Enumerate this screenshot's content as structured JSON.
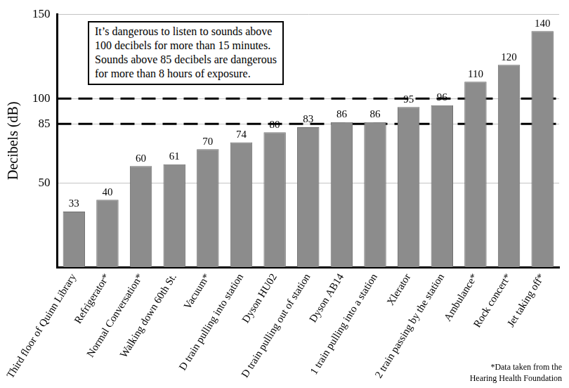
{
  "chart_data": {
    "type": "bar",
    "ylabel": "Decibels (dB)",
    "categories": [
      "Third floor of Quinn Library",
      "Refrigerator*",
      "Normal Conversation*",
      "Walking down 60th St.",
      "Vacuum*",
      "D train pulling into station",
      "Dyson HU02",
      "D train pulling out of station",
      "Dyson AB14",
      "1 train pulling into a station",
      "Xlerator",
      "2 train passing by the station",
      "Ambulance*",
      "Rock concert*",
      "Jet taking off*"
    ],
    "values": [
      33,
      40,
      60,
      61,
      70,
      74,
      80,
      83,
      86,
      86,
      95,
      96,
      110,
      120,
      140
    ],
    "color": "#8c8c8c",
    "ylim": [
      0,
      150
    ],
    "yticks": [
      50,
      85,
      100,
      150
    ],
    "reference_lines": [
      85,
      100
    ],
    "grid": true,
    "data_labels": true,
    "annotation": [
      "It’s dangerous to listen to sounds above",
      "100 decibels for more than 15 minutes.",
      "Sounds above 85 decibels are dangerous",
      "for more than 8 hours of exposure."
    ],
    "note": [
      "*Data taken from the",
      "Hearing Health Foundation"
    ]
  }
}
